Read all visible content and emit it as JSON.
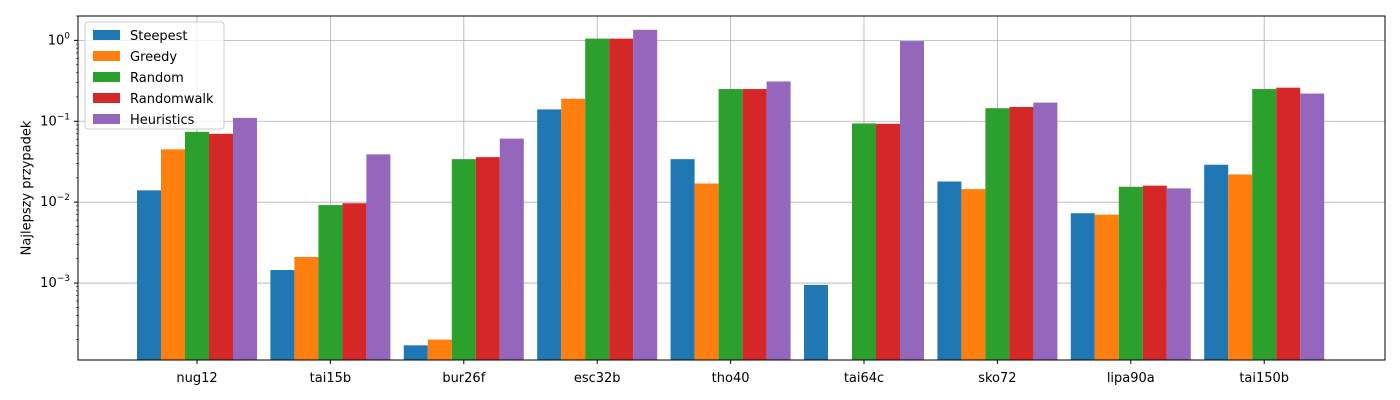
{
  "chart_data": {
    "type": "bar",
    "ylabel": "Najlepszy przypadek",
    "xlabel": "",
    "yscale": "log",
    "ylim": [
      0.000112,
      2.0
    ],
    "grid": true,
    "legend_position": "top-left",
    "categories": [
      "nug12",
      "tai15b",
      "bur26f",
      "esc32b",
      "tho40",
      "tai64c",
      "sko72",
      "lipa90a",
      "tai150b"
    ],
    "yticks": [
      {
        "exp": -3,
        "value": 0.001
      },
      {
        "exp": -2,
        "value": 0.01
      },
      {
        "exp": -1,
        "value": 0.1
      },
      {
        "exp": 0,
        "value": 1
      }
    ],
    "series": [
      {
        "name": "Steepest",
        "color": "#1f77b4",
        "values": [
          0.014,
          0.00145,
          0.00017,
          0.14,
          0.034,
          0.00095,
          0.018,
          0.0073,
          0.029
        ]
      },
      {
        "name": "Greedy",
        "color": "#ff7f0e",
        "values": [
          0.045,
          0.0021,
          0.0002,
          0.19,
          0.017,
          null,
          0.0145,
          0.007,
          0.022
        ]
      },
      {
        "name": "Random",
        "color": "#2ca02c",
        "values": [
          0.074,
          0.0092,
          0.034,
          1.05,
          0.25,
          0.094,
          0.145,
          0.0155,
          0.25
        ]
      },
      {
        "name": "Randomwalk",
        "color": "#d62728",
        "values": [
          0.07,
          0.0097,
          0.036,
          1.05,
          0.25,
          0.093,
          0.15,
          0.016,
          0.26
        ]
      },
      {
        "name": "Heuristics",
        "color": "#9467bd",
        "values": [
          0.11,
          0.039,
          0.061,
          1.35,
          0.31,
          0.98,
          0.17,
          0.0148,
          0.22
        ]
      }
    ]
  }
}
